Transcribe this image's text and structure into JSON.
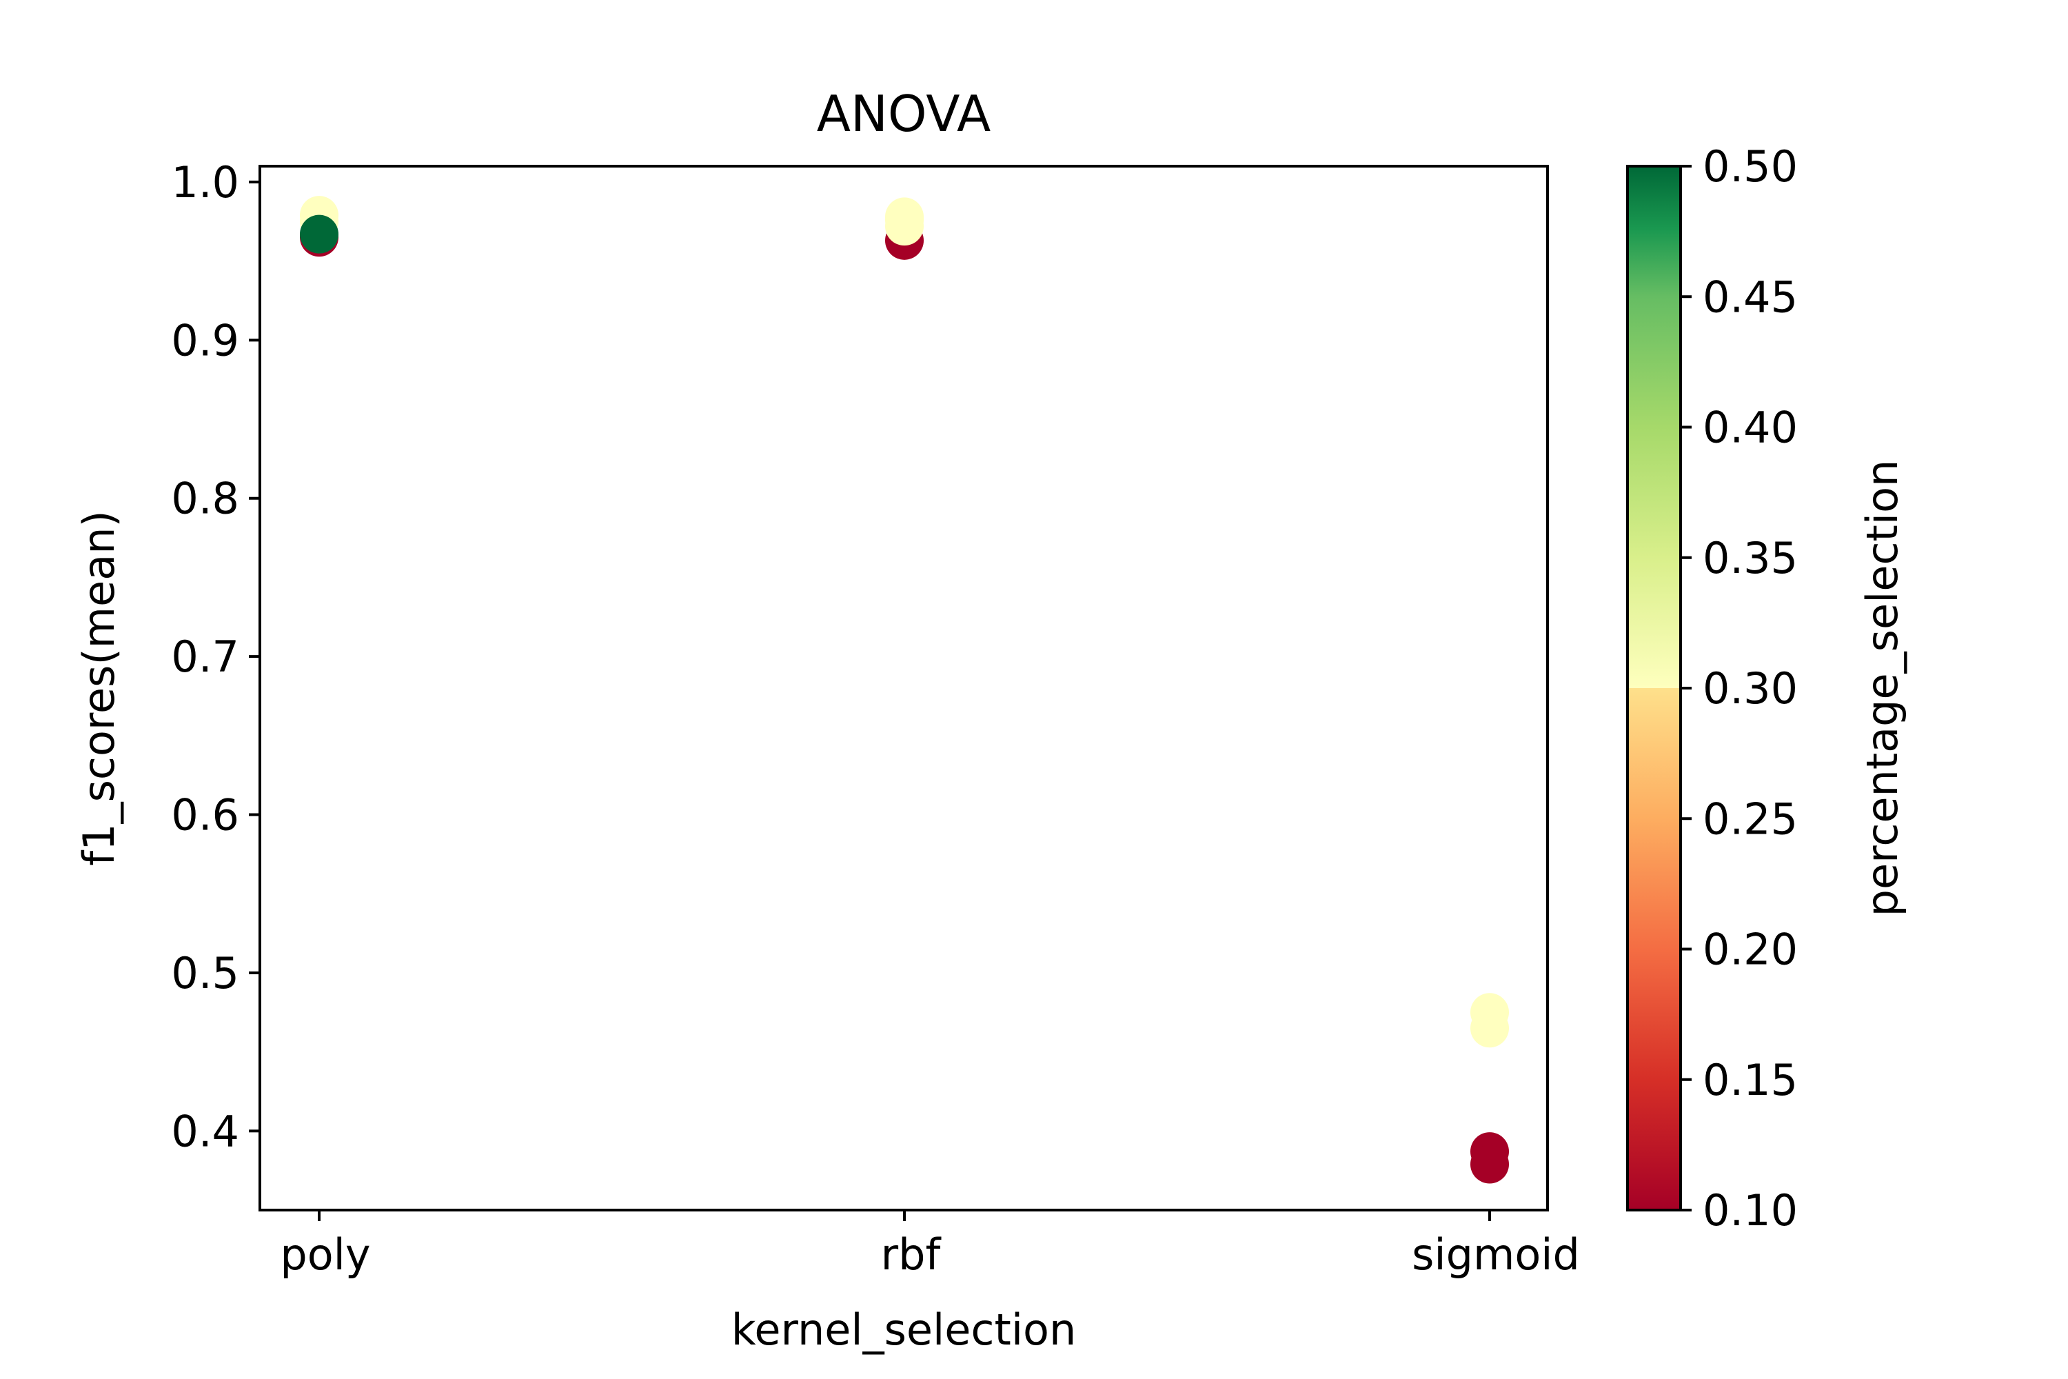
{
  "chart_data": {
    "type": "scatter",
    "title": "ANOVA",
    "xlabel": "kernel_selection",
    "ylabel": "f1_scores(mean)",
    "categories": [
      "poly",
      "rbf",
      "sigmoid"
    ],
    "ylim": [
      0.35,
      1.01
    ],
    "yticks": [
      0.4,
      0.5,
      0.6,
      0.7,
      0.8,
      0.9,
      1.0
    ],
    "grid": false,
    "colorbar": {
      "label": "percentage_selection",
      "colormap": "RdYlGn",
      "range": [
        0.1,
        0.5
      ],
      "ticks": [
        0.1,
        0.15,
        0.2,
        0.25,
        0.3,
        0.35,
        0.4,
        0.45,
        0.5
      ]
    },
    "points": [
      {
        "x": "poly",
        "y": 0.979,
        "c": 0.3
      },
      {
        "x": "poly",
        "y": 0.975,
        "c": 0.3
      },
      {
        "x": "poly",
        "y": 0.965,
        "c": 0.1
      },
      {
        "x": "poly",
        "y": 0.967,
        "c": 0.5
      },
      {
        "x": "rbf",
        "y": 0.963,
        "c": 0.1
      },
      {
        "x": "rbf",
        "y": 0.972,
        "c": 0.3
      },
      {
        "x": "rbf",
        "y": 0.976,
        "c": 0.3
      },
      {
        "x": "rbf",
        "y": 0.978,
        "c": 0.3
      },
      {
        "x": "sigmoid",
        "y": 0.475,
        "c": 0.3
      },
      {
        "x": "sigmoid",
        "y": 0.465,
        "c": 0.3
      },
      {
        "x": "sigmoid",
        "y": 0.387,
        "c": 0.1
      },
      {
        "x": "sigmoid",
        "y": 0.379,
        "c": 0.1
      }
    ]
  }
}
